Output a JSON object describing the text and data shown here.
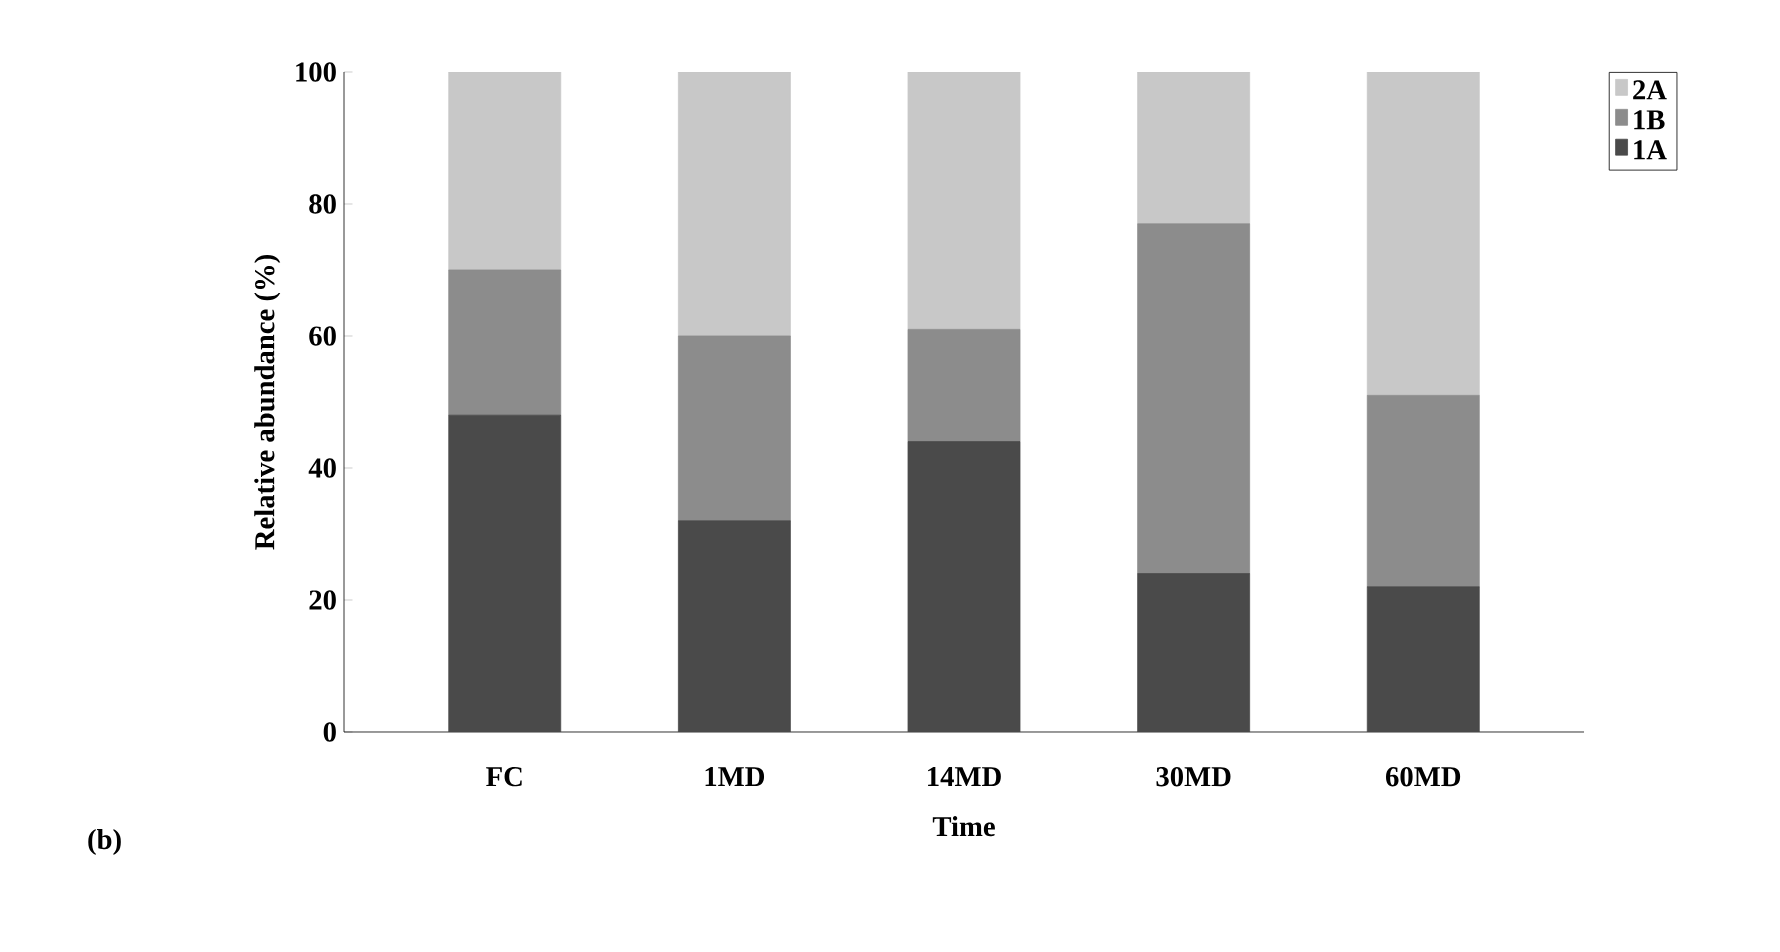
{
  "chart_data": {
    "type": "bar",
    "stacked": true,
    "categories": [
      "FC",
      "1MD",
      "14MD",
      "30MD",
      "60MD"
    ],
    "series": [
      {
        "name": "1A",
        "color": "#4a4a4a",
        "values": [
          48,
          32,
          44,
          24,
          22
        ]
      },
      {
        "name": "1B",
        "color": "#8c8c8c",
        "values": [
          22,
          28,
          17,
          53,
          29
        ]
      },
      {
        "name": "2A",
        "color": "#c8c8c8",
        "values": [
          30,
          40,
          39,
          23,
          49
        ]
      }
    ],
    "xlabel": "Time",
    "ylabel": "Relative abundance (%)",
    "ylim": [
      0,
      100
    ],
    "yticks": [
      0,
      20,
      40,
      60,
      80,
      100
    ],
    "legend": "top right",
    "grid": false,
    "annotations": [
      "(b)"
    ]
  }
}
